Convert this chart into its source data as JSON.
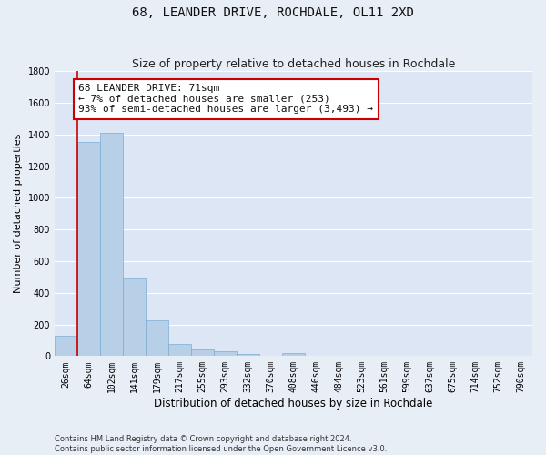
{
  "title": "68, LEANDER DRIVE, ROCHDALE, OL11 2XD",
  "subtitle": "Size of property relative to detached houses in Rochdale",
  "xlabel": "Distribution of detached houses by size in Rochdale",
  "ylabel": "Number of detached properties",
  "footer_line1": "Contains HM Land Registry data © Crown copyright and database right 2024.",
  "footer_line2": "Contains public sector information licensed under the Open Government Licence v3.0.",
  "bar_labels": [
    "26sqm",
    "64sqm",
    "102sqm",
    "141sqm",
    "179sqm",
    "217sqm",
    "255sqm",
    "293sqm",
    "332sqm",
    "370sqm",
    "408sqm",
    "446sqm",
    "484sqm",
    "523sqm",
    "561sqm",
    "599sqm",
    "637sqm",
    "675sqm",
    "714sqm",
    "752sqm",
    "790sqm"
  ],
  "bar_values": [
    130,
    1350,
    1410,
    490,
    225,
    75,
    45,
    28,
    15,
    0,
    20,
    0,
    0,
    0,
    0,
    0,
    0,
    0,
    0,
    0,
    0
  ],
  "bar_color": "#b8cfe8",
  "bar_edge_color": "#7aadd4",
  "property_line_color": "#cc0000",
  "annotation_line1": "68 LEANDER DRIVE: 71sqm",
  "annotation_line2": "← 7% of detached houses are smaller (253)",
  "annotation_line3": "93% of semi-detached houses are larger (3,493) →",
  "annotation_box_color": "#ffffff",
  "annotation_box_edge_color": "#cc0000",
  "ylim": [
    0,
    1800
  ],
  "yticks": [
    0,
    200,
    400,
    600,
    800,
    1000,
    1200,
    1400,
    1600,
    1800
  ],
  "background_color": "#e8eef5",
  "plot_background": "#dce6f5",
  "grid_color": "#ffffff",
  "title_fontsize": 10,
  "subtitle_fontsize": 9,
  "ylabel_fontsize": 8,
  "xlabel_fontsize": 8.5,
  "tick_fontsize": 7,
  "annotation_fontsize": 8,
  "footer_fontsize": 6
}
